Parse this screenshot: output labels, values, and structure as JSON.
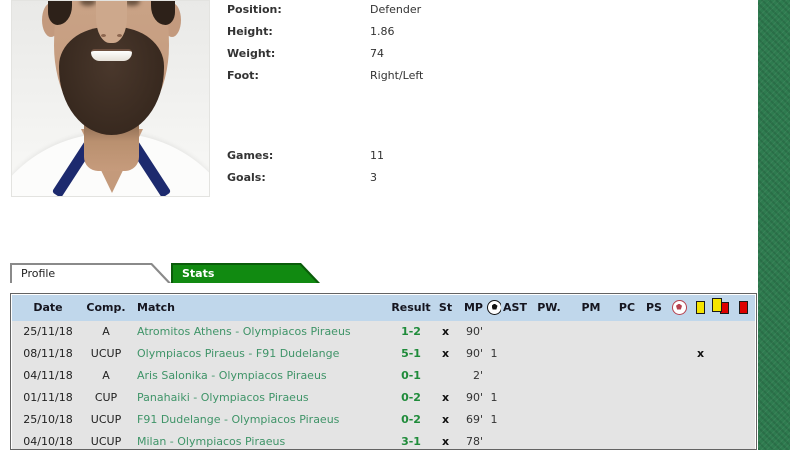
{
  "player": {
    "fields": [
      {
        "label": "Position:",
        "value": "Defender"
      },
      {
        "label": "Height:",
        "value": "1.86"
      },
      {
        "label": "Weight:",
        "value": "74"
      },
      {
        "label": "Foot:",
        "value": "Right/Left"
      }
    ],
    "season_summary": [
      {
        "label": "Games:",
        "value": "11"
      },
      {
        "label": "Goals:",
        "value": "3"
      }
    ]
  },
  "tabs": [
    {
      "label": "Profile",
      "active": false
    },
    {
      "label": "Stats",
      "active": true
    }
  ],
  "stats_table": {
    "columns": [
      {
        "id": "date",
        "label": "Date"
      },
      {
        "id": "comp",
        "label": "Comp."
      },
      {
        "id": "match",
        "label": "Match"
      },
      {
        "id": "result",
        "label": "Result"
      },
      {
        "id": "st",
        "label": "St"
      },
      {
        "id": "mp",
        "label": "MP"
      },
      {
        "id": "goals",
        "icon": "soccer-ball-icon"
      },
      {
        "id": "ast",
        "label": "AST"
      },
      {
        "id": "pw",
        "label": "PW."
      },
      {
        "id": "pm",
        "label": "PM"
      },
      {
        "id": "pc",
        "label": "PC"
      },
      {
        "id": "ps",
        "label": "PS"
      },
      {
        "id": "goals_against",
        "icon": "soccer-ball-red-icon"
      },
      {
        "id": "yellow",
        "icon": "yellow-card-icon"
      },
      {
        "id": "yellow_red",
        "icon": "yellow-red-card-icon"
      },
      {
        "id": "red",
        "icon": "red-card-icon"
      }
    ],
    "rows": [
      {
        "date": "25/11/18",
        "comp": "A",
        "match": "Atromitos Athens - Olympiacos Piraeus",
        "result": "1-2",
        "st": "x",
        "mp": "90'",
        "goals": "",
        "yellow": ""
      },
      {
        "date": "08/11/18",
        "comp": "UCUP",
        "match": "Olympiacos Piraeus - F91 Dudelange",
        "result": "5-1",
        "st": "x",
        "mp": "90'",
        "goals": "1",
        "yellow": "x"
      },
      {
        "date": "04/11/18",
        "comp": "A",
        "match": "Aris Salonika - Olympiacos Piraeus",
        "result": "0-1",
        "st": "",
        "mp": "2'",
        "goals": "",
        "yellow": ""
      },
      {
        "date": "01/11/18",
        "comp": "CUP",
        "match": "Panahaiki - Olympiacos Piraeus",
        "result": "0-2",
        "st": "x",
        "mp": "90'",
        "goals": "1",
        "yellow": ""
      },
      {
        "date": "25/10/18",
        "comp": "UCUP",
        "match": "F91 Dudelange - Olympiacos Piraeus",
        "result": "0-2",
        "st": "x",
        "mp": "69'",
        "goals": "1",
        "yellow": ""
      },
      {
        "date": "04/10/18",
        "comp": "UCUP",
        "match": "Milan - Olympiacos Piraeus",
        "result": "3-1",
        "st": "x",
        "mp": "78'",
        "goals": "",
        "yellow": ""
      }
    ]
  },
  "colors": {
    "tab_active_green": "#118a11",
    "match_link_green": "#3f9468",
    "result_green": "#1f8b3a",
    "table_header_blue": "#c0d7eb",
    "table_row_gray": "#e4e4e4",
    "yellow_card": "#f5e400",
    "red_card": "#dd0000",
    "pitch_band_green": "#2e7b4f"
  }
}
